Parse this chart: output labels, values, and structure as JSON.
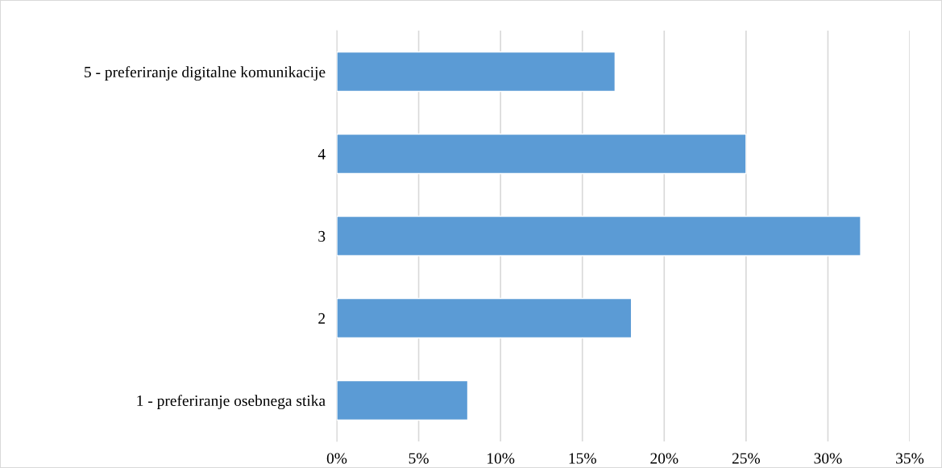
{
  "chart_data": {
    "type": "bar",
    "orientation": "horizontal",
    "categories": [
      "5 - preferiranje digitalne komunikacije",
      "4",
      "3",
      "2",
      "1 - preferiranje osebnega stika"
    ],
    "values": [
      17,
      25,
      32,
      18,
      8
    ],
    "color": "#5b9bd5",
    "xlim": [
      0,
      35
    ],
    "xticks": [
      {
        "value": 0,
        "label": "0%"
      },
      {
        "value": 5,
        "label": "5%"
      },
      {
        "value": 10,
        "label": "10%"
      },
      {
        "value": 15,
        "label": "15%"
      },
      {
        "value": 20,
        "label": "20%"
      },
      {
        "value": 25,
        "label": "25%"
      },
      {
        "value": 30,
        "label": "30%"
      },
      {
        "value": 35,
        "label": "35%"
      }
    ],
    "grid": "x"
  }
}
